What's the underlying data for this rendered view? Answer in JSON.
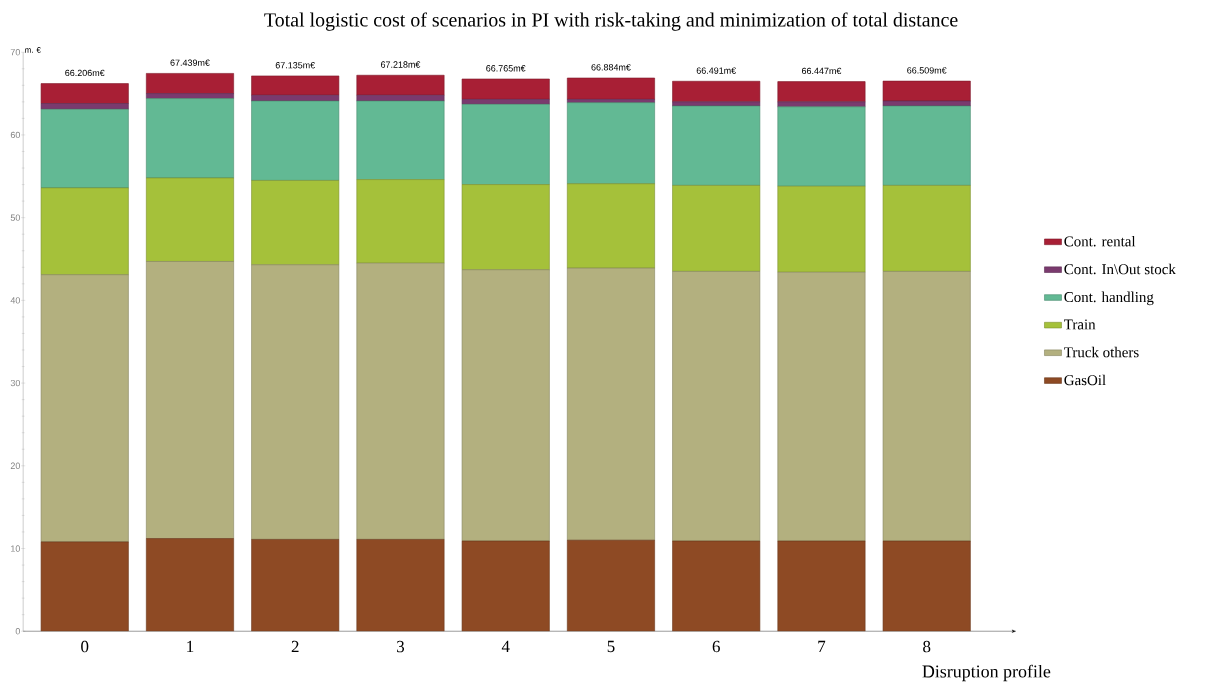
{
  "chart_data": {
    "type": "bar",
    "stacked": true,
    "title": "Total logistic cost of scenarios in PI with risk-taking and minimization of total distance",
    "xlabel": "Disruption profile",
    "ylabel": "m. €",
    "categories": [
      "0",
      "1",
      "2",
      "3",
      "4",
      "5",
      "6",
      "7",
      "8"
    ],
    "series": [
      {
        "name": "GasOil",
        "color": "#8e4a24",
        "values": [
          10.8,
          11.2,
          11.1,
          11.1,
          10.9,
          11.0,
          10.9,
          10.9,
          10.9
        ]
      },
      {
        "name": "Truck others",
        "color": "#b3b07f",
        "values": [
          32.3,
          33.5,
          33.2,
          33.4,
          32.8,
          32.9,
          32.6,
          32.5,
          32.6
        ]
      },
      {
        "name": "Train",
        "color": "#a5c13a",
        "values": [
          10.5,
          10.1,
          10.2,
          10.1,
          10.3,
          10.2,
          10.4,
          10.4,
          10.4
        ]
      },
      {
        "name": "Cont. handling",
        "color": "#62b994",
        "values": [
          9.5,
          9.6,
          9.6,
          9.5,
          9.7,
          9.8,
          9.6,
          9.6,
          9.6
        ]
      },
      {
        "name": "Cont. In\\Out stock",
        "color": "#7a3a6e",
        "values": [
          0.7,
          0.6,
          0.7,
          0.7,
          0.6,
          0.4,
          0.5,
          0.6,
          0.6
        ]
      },
      {
        "name": "Cont. rental",
        "color": "#a81f35",
        "values": [
          2.406,
          2.439,
          2.335,
          2.418,
          2.465,
          2.584,
          2.491,
          2.447,
          2.409
        ]
      }
    ],
    "totals": [
      "66.206m€",
      "67.439m€",
      "67.135m€",
      "67.218m€",
      "66.765m€",
      "66.884m€",
      "66.491m€",
      "66.447m€",
      "66.509m€"
    ],
    "ylim": [
      0,
      70
    ],
    "yticks": [
      0,
      10,
      20,
      30,
      40,
      50,
      60,
      70
    ],
    "legend": "right",
    "grid": false
  }
}
